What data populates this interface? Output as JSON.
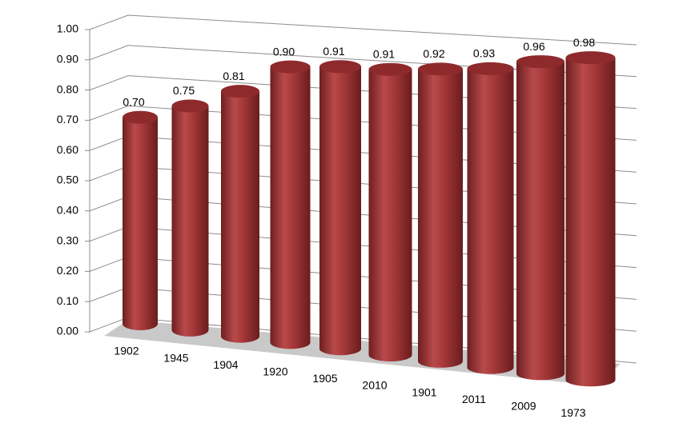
{
  "chart_data": {
    "type": "bar3d",
    "categories": [
      "1902",
      "1945",
      "1904",
      "1920",
      "1905",
      "2010",
      "1901",
      "2011",
      "2009",
      "1973"
    ],
    "values": [
      0.7,
      0.75,
      0.81,
      0.9,
      0.91,
      0.91,
      0.92,
      0.93,
      0.96,
      0.98
    ],
    "value_labels": [
      "0.70",
      "0.75",
      "0.81",
      "0.90",
      "0.91",
      "0.91",
      "0.92",
      "0.93",
      "0.96",
      "0.98"
    ],
    "color": "#a8393a",
    "ylim": [
      0,
      1
    ],
    "yticks": [
      {
        "value": 0,
        "label": "0.00"
      },
      {
        "value": 0.1,
        "label": "0.10"
      },
      {
        "value": 0.2,
        "label": "0.20"
      },
      {
        "value": 0.3,
        "label": "0.30"
      },
      {
        "value": 0.4,
        "label": "0.40"
      },
      {
        "value": 0.5,
        "label": "0.50"
      },
      {
        "value": 0.6,
        "label": "0.60"
      },
      {
        "value": 0.7,
        "label": "0.70"
      },
      {
        "value": 0.8,
        "label": "0.80"
      },
      {
        "value": 0.9,
        "label": "0.90"
      },
      {
        "value": 1,
        "label": "1.00"
      }
    ],
    "grid": true
  }
}
